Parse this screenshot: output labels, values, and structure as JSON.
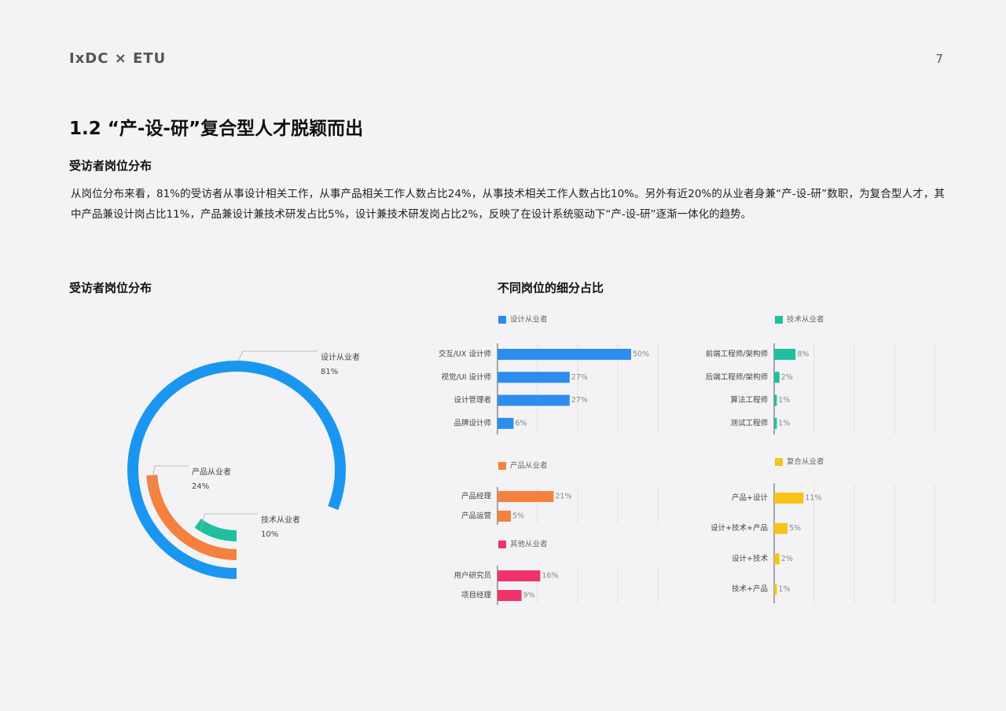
{
  "header": {
    "brand": "IxDC × ETU",
    "page": 7
  },
  "title": "1.2 “产-设-研”复合型人才脱颖而出",
  "section_heading": "受访者岗位分布",
  "paragraph": "从岗位分布来看，81%的受访者从事设计相关工作，从事产品相关工作人数占比24%，从事技术相关工作人数占比10%。另外有近20%的从业者身兼“产-设-研”数职，为复合型人才，其中产品兼设计岗占比11%，产品兼设计兼技术研发占比5%，设计兼技术研发岗占比2%，反映了在设计系统驱动下“产-设-研”逐渐一体化的趋势。",
  "chart_data": [
    {
      "type": "radial-bar",
      "title": "受访者岗位分布",
      "categories": [
        "设计从业者",
        "产品从业者",
        "技术从业者"
      ],
      "values": [
        81,
        24,
        10
      ],
      "value_labels": [
        "81%",
        "24%",
        "10%"
      ],
      "colors": [
        "#1a96f0",
        "#f5813f",
        "#1fbf9f"
      ],
      "ylim": [
        0,
        100
      ]
    },
    {
      "type": "bar",
      "orientation": "horizontal",
      "title": "不同岗位的细分占比",
      "xlim": [
        0,
        60
      ],
      "xticks": [
        0,
        15,
        30,
        45,
        60
      ],
      "grid": true,
      "panels": [
        {
          "categories": [
            "交互/UX 设计师",
            "视觉/UI 设计师",
            "设计管理者",
            "品牌设计师"
          ],
          "series": [
            {
              "name": "设计从业者",
              "color": "#2d8cf0",
              "values": [
                50,
                27,
                27,
                6
              ],
              "value_labels": [
                "50%",
                "27%",
                "27%",
                "6%"
              ]
            }
          ]
        },
        {
          "categories": [
            "前端工程师/架构师",
            "后端工程师/架构师",
            "算法工程师",
            "测试工程师"
          ],
          "series": [
            {
              "name": "技术从业者",
              "color": "#1fbf9f",
              "values": [
                8,
                2,
                1,
                1
              ],
              "value_labels": [
                "8%",
                "2%",
                "1%",
                "1%"
              ]
            }
          ]
        },
        {
          "categories": [
            "产品经理",
            "产品运营"
          ],
          "series": [
            {
              "name": "产品从业者",
              "color": "#f5813f",
              "values": [
                21,
                5
              ],
              "value_labels": [
                "21%",
                "5%"
              ]
            }
          ]
        },
        {
          "categories": [
            "用户研究员",
            "项目经理"
          ],
          "series": [
            {
              "name": "其他从业者",
              "color": "#f0336b",
              "values": [
                16,
                9
              ],
              "value_labels": [
                "16%",
                "9%"
              ]
            }
          ]
        },
        {
          "categories": [
            "产品+设计",
            "设计+技术+产品",
            "设计+技术",
            "技术+产品"
          ],
          "series": [
            {
              "name": "复合从业者",
              "color": "#f7c319",
              "values": [
                11,
                5,
                2,
                1
              ],
              "value_labels": [
                "11%",
                "5%",
                "2%",
                "1%"
              ]
            }
          ]
        }
      ]
    }
  ]
}
